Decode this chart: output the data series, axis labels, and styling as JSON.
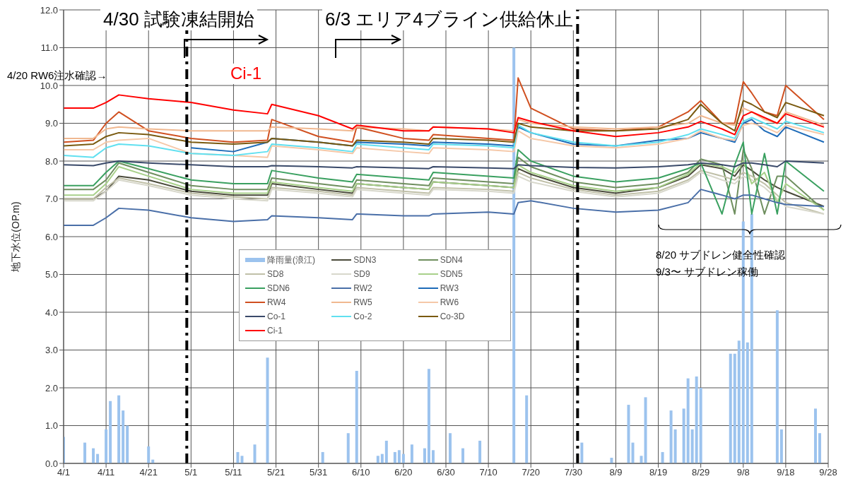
{
  "chart_data": {
    "type": "line",
    "ylabel": "地下水位(OP.m)",
    "x": [
      "--04-01",
      "--04-08",
      "--04-11",
      "--04-14",
      "--04-21",
      "--05-01",
      "--05-11",
      "--05-19",
      "--05-20",
      "--05-31",
      "--06-08",
      "--06-09",
      "--06-20",
      "--06-26",
      "--06-27",
      "--07-10",
      "--07-16",
      "--07-17",
      "--07-20",
      "--07-30",
      "--08-09",
      "--08-19",
      "--08-26",
      "--08-29",
      "--09-03",
      "--09-06",
      "--09-08",
      "--09-10",
      "--09-13",
      "--09-16",
      "--09-18",
      "--09-27"
    ],
    "series": [
      {
        "name": "降雨量(浪江)",
        "type": "bar",
        "color": "#9cc3ee",
        "x": [
          "--04-01",
          "--04-06",
          "--04-08",
          "--04-09",
          "--04-11",
          "--04-12",
          "--04-14",
          "--04-15",
          "--04-16",
          "--04-21",
          "--04-22",
          "--05-12",
          "--05-13",
          "--05-16",
          "--05-19",
          "--06-01",
          "--06-07",
          "--06-09",
          "--06-14",
          "--06-15",
          "--06-16",
          "--06-18",
          "--06-19",
          "--06-20",
          "--06-22",
          "--06-25",
          "--06-26",
          "--06-27",
          "--07-01",
          "--07-04",
          "--07-08",
          "--07-16",
          "--07-19",
          "--08-01",
          "--08-08",
          "--08-12",
          "--08-13",
          "--08-15",
          "--08-16",
          "--08-20",
          "--08-22",
          "--08-23",
          "--08-25",
          "--08-26",
          "--08-27",
          "--08-28",
          "--08-29",
          "--09-05",
          "--09-06",
          "--09-07",
          "--09-08",
          "--09-09",
          "--09-10",
          "--09-16",
          "--09-17",
          "--09-25",
          "--09-26"
        ],
        "values": [
          0.7,
          0.55,
          0.4,
          0.25,
          0.9,
          1.65,
          1.8,
          1.4,
          1.0,
          0.45,
          0.1,
          0.3,
          0.2,
          0.5,
          2.8,
          0.3,
          0.8,
          2.45,
          0.2,
          0.25,
          0.6,
          0.3,
          0.35,
          0.25,
          0.5,
          0.4,
          2.5,
          0.35,
          0.8,
          0.4,
          0.6,
          11.0,
          1.8,
          0.55,
          0.15,
          1.55,
          0.55,
          0.2,
          1.75,
          0.3,
          1.4,
          0.9,
          1.45,
          2.25,
          0.9,
          2.3,
          2.0,
          2.9,
          2.9,
          3.25,
          6.4,
          3.2,
          6.6,
          4.05,
          0.9,
          1.45,
          0.8
        ]
      },
      {
        "name": "SDN3",
        "color": "#4a4a3a",
        "values": [
          7.0,
          7.0,
          7.2,
          7.6,
          7.5,
          7.2,
          7.1,
          7.1,
          7.4,
          7.25,
          7.15,
          7.4,
          7.3,
          7.25,
          7.45,
          7.35,
          7.3,
          7.8,
          7.65,
          7.3,
          7.15,
          7.3,
          7.6,
          7.9,
          7.8,
          7.6,
          7.9,
          7.75,
          7.5,
          7.3,
          7.2,
          6.8
        ]
      },
      {
        "name": "SDN4",
        "color": "#6f8f5f",
        "values": [
          7.25,
          7.25,
          7.5,
          7.95,
          7.7,
          7.35,
          7.25,
          7.25,
          7.55,
          7.4,
          7.3,
          7.5,
          7.4,
          7.35,
          7.55,
          7.45,
          7.4,
          8.1,
          7.85,
          7.45,
          7.3,
          7.4,
          7.7,
          8.05,
          7.9,
          6.6,
          8.3,
          7.8,
          6.6,
          7.6,
          7.6,
          6.7
        ]
      },
      {
        "name": "SD8",
        "color": "#c0c0a8",
        "values": [
          7.0,
          7.0,
          7.3,
          7.55,
          7.4,
          7.15,
          7.05,
          7.0,
          7.3,
          7.2,
          7.1,
          7.3,
          7.2,
          7.15,
          7.3,
          7.25,
          7.2,
          7.7,
          7.55,
          7.25,
          7.1,
          7.2,
          7.5,
          7.75,
          7.6,
          7.5,
          7.7,
          7.6,
          7.4,
          7.1,
          6.9,
          6.6
        ]
      },
      {
        "name": "SD9",
        "color": "#d8d8cc",
        "values": [
          6.95,
          6.95,
          7.2,
          7.5,
          7.35,
          7.1,
          7.0,
          6.95,
          7.25,
          7.15,
          7.05,
          7.25,
          7.15,
          7.1,
          7.25,
          7.2,
          7.15,
          7.6,
          7.45,
          7.2,
          7.05,
          7.15,
          7.45,
          7.7,
          7.5,
          7.4,
          7.6,
          7.5,
          7.3,
          7.0,
          6.8,
          6.6
        ]
      },
      {
        "name": "SDN5",
        "color": "#a8d08a",
        "values": [
          7.1,
          7.1,
          7.4,
          7.85,
          7.6,
          7.25,
          7.15,
          7.15,
          7.45,
          7.3,
          7.2,
          7.4,
          7.3,
          7.25,
          7.45,
          7.35,
          7.3,
          7.9,
          7.7,
          7.35,
          7.2,
          7.3,
          7.65,
          7.95,
          7.85,
          7.7,
          8.0,
          7.4,
          7.7,
          6.9,
          7.4,
          6.7
        ]
      },
      {
        "name": "SDN6",
        "color": "#3aa060",
        "values": [
          7.35,
          7.35,
          7.7,
          8.0,
          7.8,
          7.5,
          7.4,
          7.4,
          7.75,
          7.55,
          7.45,
          7.65,
          7.55,
          7.5,
          7.7,
          7.6,
          7.55,
          8.3,
          8.0,
          7.6,
          7.45,
          7.55,
          7.8,
          7.95,
          6.6,
          7.9,
          8.5,
          6.6,
          8.2,
          6.6,
          8.0,
          7.2
        ]
      },
      {
        "name": "RW2",
        "color": "#4a6fa8",
        "values": [
          6.3,
          6.3,
          6.5,
          6.75,
          6.7,
          6.5,
          6.4,
          6.45,
          6.55,
          6.5,
          6.45,
          6.6,
          6.55,
          6.55,
          6.6,
          6.65,
          6.6,
          6.9,
          6.95,
          6.75,
          6.65,
          6.7,
          6.9,
          7.25,
          7.1,
          7.0,
          7.1,
          7.1,
          7.0,
          6.9,
          6.85,
          6.8
        ]
      },
      {
        "name": "RW3",
        "color": "#1e6bb8",
        "values": [
          null,
          null,
          null,
          null,
          null,
          8.35,
          8.25,
          8.5,
          8.6,
          8.5,
          8.4,
          8.5,
          8.45,
          8.4,
          8.5,
          8.45,
          8.4,
          8.9,
          8.75,
          8.45,
          8.4,
          8.55,
          8.6,
          8.75,
          8.6,
          8.5,
          9.0,
          9.1,
          8.8,
          8.65,
          8.9,
          8.5
        ]
      },
      {
        "name": "RW4",
        "color": "#d05020",
        "values": [
          8.5,
          8.55,
          9.0,
          9.3,
          8.8,
          8.6,
          8.5,
          8.55,
          9.1,
          8.65,
          8.5,
          8.9,
          8.6,
          8.55,
          8.7,
          8.6,
          8.55,
          10.2,
          9.4,
          8.85,
          8.8,
          8.9,
          9.3,
          9.6,
          9.0,
          9.0,
          10.1,
          9.8,
          9.3,
          9.2,
          10.0,
          9.1
        ]
      },
      {
        "name": "RW5",
        "color": "#f0b890",
        "values": [
          8.6,
          8.6,
          8.85,
          8.9,
          8.85,
          8.8,
          8.8,
          8.8,
          8.9,
          8.85,
          8.8,
          8.9,
          8.85,
          8.8,
          8.9,
          8.85,
          8.8,
          9.1,
          9.0,
          8.9,
          8.85,
          8.9,
          9.0,
          9.2,
          9.0,
          8.95,
          9.4,
          9.3,
          9.1,
          9.0,
          9.3,
          8.95
        ]
      },
      {
        "name": "RW6",
        "color": "#f5c8a8",
        "values": [
          8.3,
          8.3,
          8.5,
          8.55,
          8.6,
          8.2,
          8.15,
          8.1,
          8.4,
          8.3,
          8.2,
          8.35,
          8.25,
          8.2,
          8.35,
          8.3,
          8.25,
          8.8,
          8.6,
          8.4,
          8.35,
          8.45,
          8.6,
          8.8,
          8.6,
          8.55,
          8.95,
          9.0,
          8.9,
          8.75,
          8.95,
          8.7
        ]
      },
      {
        "name": "Co-1",
        "color": "#3a4a6a",
        "values": [
          7.9,
          7.88,
          7.95,
          8.0,
          7.95,
          7.9,
          7.85,
          7.85,
          7.88,
          7.85,
          7.82,
          7.85,
          7.82,
          7.8,
          7.85,
          7.82,
          7.8,
          7.9,
          7.88,
          7.83,
          7.82,
          7.85,
          7.9,
          7.95,
          7.9,
          7.85,
          7.95,
          7.95,
          7.9,
          7.85,
          8.0,
          7.95
        ]
      },
      {
        "name": "Co-2",
        "color": "#60e0f0",
        "values": [
          8.15,
          8.1,
          8.35,
          8.45,
          8.4,
          8.2,
          8.15,
          8.25,
          8.45,
          8.35,
          8.25,
          8.45,
          8.35,
          8.3,
          8.45,
          8.4,
          8.35,
          8.95,
          8.75,
          8.5,
          8.4,
          8.5,
          8.7,
          8.85,
          8.7,
          8.6,
          9.05,
          9.15,
          9.0,
          8.85,
          9.05,
          8.75
        ]
      },
      {
        "name": "Co-3D",
        "color": "#7a5a10",
        "values": [
          8.4,
          8.45,
          8.65,
          8.75,
          8.7,
          8.5,
          8.45,
          8.5,
          8.6,
          8.5,
          8.4,
          8.55,
          8.5,
          8.45,
          8.6,
          8.55,
          8.5,
          9.0,
          8.9,
          8.8,
          8.8,
          8.85,
          9.1,
          9.5,
          9.0,
          8.8,
          9.6,
          9.5,
          9.3,
          9.15,
          9.55,
          9.2
        ]
      },
      {
        "name": "Ci-1",
        "color": "#ff0000",
        "values": [
          9.4,
          9.4,
          9.55,
          9.75,
          9.65,
          9.55,
          9.35,
          9.25,
          9.5,
          9.2,
          8.85,
          8.95,
          8.8,
          8.8,
          8.9,
          8.85,
          8.75,
          9.15,
          9.05,
          8.8,
          8.65,
          8.75,
          8.9,
          9.05,
          8.85,
          8.7,
          9.2,
          9.3,
          9.15,
          9.0,
          9.25,
          8.9
        ]
      }
    ],
    "xlim": [
      "--04-01",
      "--09-28"
    ],
    "xticks": [
      {
        "value": "--04-01",
        "label": "4/1"
      },
      {
        "value": "--04-11",
        "label": "4/11"
      },
      {
        "value": "--04-21",
        "label": "4/21"
      },
      {
        "value": "--05-01",
        "label": "5/1"
      },
      {
        "value": "--05-11",
        "label": "5/11"
      },
      {
        "value": "--05-21",
        "label": "5/21"
      },
      {
        "value": "--05-31",
        "label": "5/31"
      },
      {
        "value": "--06-10",
        "label": "6/10"
      },
      {
        "value": "--06-20",
        "label": "6/20"
      },
      {
        "value": "--06-30",
        "label": "6/30"
      },
      {
        "value": "--07-10",
        "label": "7/10"
      },
      {
        "value": "--07-20",
        "label": "7/20"
      },
      {
        "value": "--07-30",
        "label": "7/30"
      },
      {
        "value": "--08-09",
        "label": "8/9"
      },
      {
        "value": "--08-19",
        "label": "8/19"
      },
      {
        "value": "--08-29",
        "label": "8/29"
      },
      {
        "value": "--09-08",
        "label": "9/8"
      },
      {
        "value": "--09-18",
        "label": "9/18"
      },
      {
        "value": "--09-28",
        "label": "9/28"
      }
    ],
    "ylim": [
      0,
      12
    ],
    "yticks": [
      {
        "value": 0,
        "label": "0.0"
      },
      {
        "value": 1,
        "label": "1.0"
      },
      {
        "value": 2,
        "label": "2.0"
      },
      {
        "value": 3,
        "label": "3.0"
      },
      {
        "value": 4,
        "label": "4.0"
      },
      {
        "value": 5,
        "label": "5.0"
      },
      {
        "value": 6,
        "label": "6.0"
      },
      {
        "value": 7,
        "label": "7.0"
      },
      {
        "value": 8,
        "label": "8.0"
      },
      {
        "value": 9,
        "label": "9.0"
      },
      {
        "value": 10,
        "label": "10.0"
      },
      {
        "value": 11,
        "label": "11.0"
      },
      {
        "value": 12,
        "label": "12.0"
      }
    ],
    "ref_lines": [
      {
        "axis": "x",
        "value": "--04-30",
        "color": "#000000",
        "line_style": "dashed"
      },
      {
        "axis": "x",
        "value": "--07-31",
        "color": "#000000",
        "line_style": "dashed"
      }
    ],
    "annotations": [
      {
        "text": "4/30 試験凍結開始",
        "x": "--04-30"
      },
      "6/3 エリア4ブライン供給休止",
      "4/20 RW6注水確認→",
      "Ci-1",
      "8/20 サブドレン健全性確認",
      "9/3〜 サブドレン稼働"
    ],
    "grid": true,
    "legend": "center",
    "marker": "none",
    "line_style": "solid"
  }
}
